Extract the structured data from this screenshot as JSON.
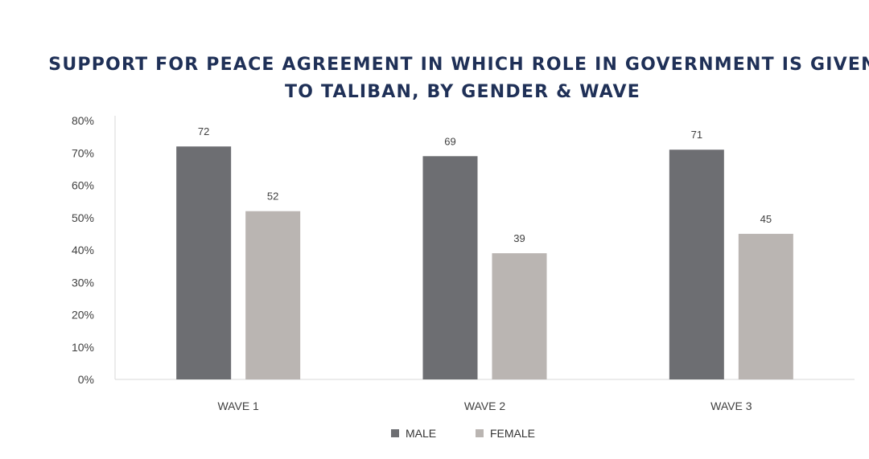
{
  "chart_data": {
    "type": "bar",
    "title_lines": [
      "SUPPORT FOR PEACE AGREEMENT IN WHICH ROLE IN GOVERNMENT IS GIVEN",
      "TO TALIBAN, BY GENDER & WAVE"
    ],
    "categories": [
      "WAVE 1",
      "WAVE 2",
      "WAVE 3"
    ],
    "series": [
      {
        "name": "MALE",
        "values": [
          72,
          69,
          71
        ],
        "color": "#6d6e72"
      },
      {
        "name": "FEMALE",
        "values": [
          52,
          39,
          45
        ],
        "color": "#bab5b2"
      }
    ],
    "ylim": [
      0,
      80
    ],
    "yticks": [
      "0%",
      "10%",
      "20%",
      "30%",
      "40%",
      "50%",
      "60%",
      "70%",
      "80%"
    ],
    "grid": false,
    "legend_position": "bottom"
  }
}
